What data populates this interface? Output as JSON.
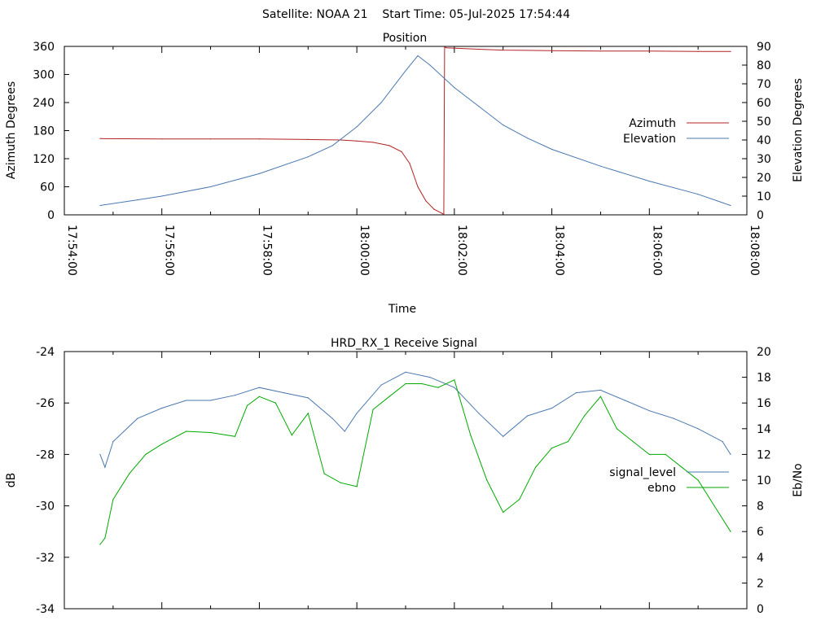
{
  "page_title": "Satellite: NOAA 21    Start Time: 05-Jul-2025 17:54:44",
  "chart_data": [
    {
      "type": "line",
      "title": "Position",
      "xlabel": "Time",
      "ylabel": "Azimuth Degrees",
      "y2label": "Elevation Degrees",
      "x_ticks": [
        "17:54:00",
        "17:56:00",
        "17:58:00",
        "18:00:00",
        "18:02:00",
        "18:04:00",
        "18:06:00",
        "18:08:00"
      ],
      "xlim": [
        "17:54:00",
        "18:08:00"
      ],
      "ylim": [
        0,
        360
      ],
      "y2lim": [
        0,
        90
      ],
      "y_ticks": [
        0,
        60,
        120,
        180,
        240,
        300,
        360
      ],
      "y2_ticks": [
        0,
        10,
        20,
        30,
        40,
        50,
        60,
        70,
        80,
        90
      ],
      "grid": false,
      "legend_position": "right",
      "series": [
        {
          "name": "Azimuth",
          "axis": "y",
          "color": "#b22222",
          "x": [
            "17:54:44",
            "17:56:00",
            "17:57:00",
            "17:58:00",
            "17:59:00",
            "17:59:40",
            "18:00:00",
            "18:00:20",
            "18:00:40",
            "18:00:55",
            "18:01:05",
            "18:01:15",
            "18:01:25",
            "18:01:35",
            "18:01:45",
            "18:01:47",
            "18:01:48",
            "18:01:50",
            "18:02:30",
            "18:03:00",
            "18:04:00",
            "18:05:00",
            "18:06:00",
            "18:07:00",
            "18:07:40"
          ],
          "values": [
            163,
            162,
            162,
            162,
            161,
            160,
            158,
            155,
            148,
            135,
            110,
            60,
            30,
            12,
            3,
            1,
            359,
            357,
            354,
            352,
            351,
            350,
            350,
            349,
            349
          ]
        },
        {
          "name": "Elevation",
          "axis": "y2",
          "color": "#4a78b0",
          "x": [
            "17:54:44",
            "17:55:30",
            "17:56:00",
            "17:57:00",
            "17:58:00",
            "17:59:00",
            "17:59:30",
            "18:00:00",
            "18:00:30",
            "18:01:00",
            "18:01:15",
            "18:01:30",
            "18:02:00",
            "18:02:30",
            "18:03:00",
            "18:03:30",
            "18:04:00",
            "18:05:00",
            "18:06:00",
            "18:07:00",
            "18:07:40"
          ],
          "values": [
            5,
            8,
            10,
            15,
            22,
            31,
            37,
            47,
            60,
            77,
            85,
            80,
            68,
            58,
            48,
            41,
            35,
            26,
            18,
            11,
            5
          ]
        }
      ]
    },
    {
      "type": "line",
      "title": "HRD_RX_1 Receive Signal",
      "xlabel": "",
      "ylabel": "dB",
      "y2label": "Eb/No",
      "x_ticks": [],
      "xlim": [
        "17:54:00",
        "18:08:00"
      ],
      "ylim": [
        -34,
        -24
      ],
      "y2lim": [
        0,
        20
      ],
      "y_ticks": [
        -34,
        -32,
        -30,
        -28,
        -26,
        -24
      ],
      "y2_ticks": [
        0,
        2,
        4,
        6,
        8,
        10,
        12,
        14,
        16,
        18,
        20
      ],
      "grid": false,
      "legend_position": "right",
      "series": [
        {
          "name": "signal_level",
          "axis": "y",
          "color": "#4a78b0",
          "x": [
            "17:54:44",
            "17:54:50",
            "17:55:00",
            "17:55:30",
            "17:56:00",
            "17:56:30",
            "17:57:00",
            "17:57:30",
            "17:58:00",
            "17:58:30",
            "17:59:00",
            "17:59:30",
            "17:59:45",
            "18:00:00",
            "18:00:30",
            "18:01:00",
            "18:01:30",
            "18:02:00",
            "18:02:30",
            "18:03:00",
            "18:03:30",
            "18:04:00",
            "18:04:30",
            "18:05:00",
            "18:05:30",
            "18:06:00",
            "18:06:30",
            "18:07:00",
            "18:07:30",
            "18:07:40"
          ],
          "values": [
            -28.0,
            -28.5,
            -27.5,
            -26.6,
            -26.2,
            -25.9,
            -25.9,
            -25.7,
            -25.4,
            -25.6,
            -25.8,
            -26.6,
            -27.1,
            -26.4,
            -25.3,
            -24.8,
            -25.0,
            -25.4,
            -26.4,
            -27.3,
            -26.5,
            -26.2,
            -25.6,
            -25.5,
            -25.9,
            -26.3,
            -26.6,
            -27.0,
            -27.5,
            -28.0
          ]
        },
        {
          "name": "ebno",
          "axis": "y2",
          "color": "#00aa00",
          "x": [
            "17:54:44",
            "17:54:50",
            "17:55:00",
            "17:55:20",
            "17:55:40",
            "17:56:00",
            "17:56:30",
            "17:57:00",
            "17:57:30",
            "17:57:45",
            "17:58:00",
            "17:58:20",
            "17:58:40",
            "17:59:00",
            "17:59:20",
            "17:59:40",
            "18:00:00",
            "18:00:20",
            "18:00:40",
            "18:01:00",
            "18:01:20",
            "18:01:40",
            "18:02:00",
            "18:02:20",
            "18:02:40",
            "18:03:00",
            "18:03:20",
            "18:03:40",
            "18:04:00",
            "18:04:20",
            "18:04:40",
            "18:05:00",
            "18:05:20",
            "18:05:40",
            "18:06:00",
            "18:06:20",
            "18:06:40",
            "18:07:00",
            "18:07:20",
            "18:07:40"
          ],
          "values": [
            5.0,
            5.5,
            8.5,
            10.5,
            12.0,
            12.8,
            13.8,
            13.7,
            13.4,
            15.8,
            16.5,
            16.0,
            13.5,
            15.2,
            10.5,
            9.8,
            9.5,
            15.5,
            16.5,
            17.5,
            17.5,
            17.2,
            17.8,
            13.5,
            10.0,
            7.5,
            8.5,
            11.0,
            12.5,
            13.0,
            15.0,
            16.5,
            14.0,
            13.0,
            12.0,
            12.0,
            11.0,
            10.0,
            8.0,
            6.0
          ]
        }
      ]
    }
  ]
}
